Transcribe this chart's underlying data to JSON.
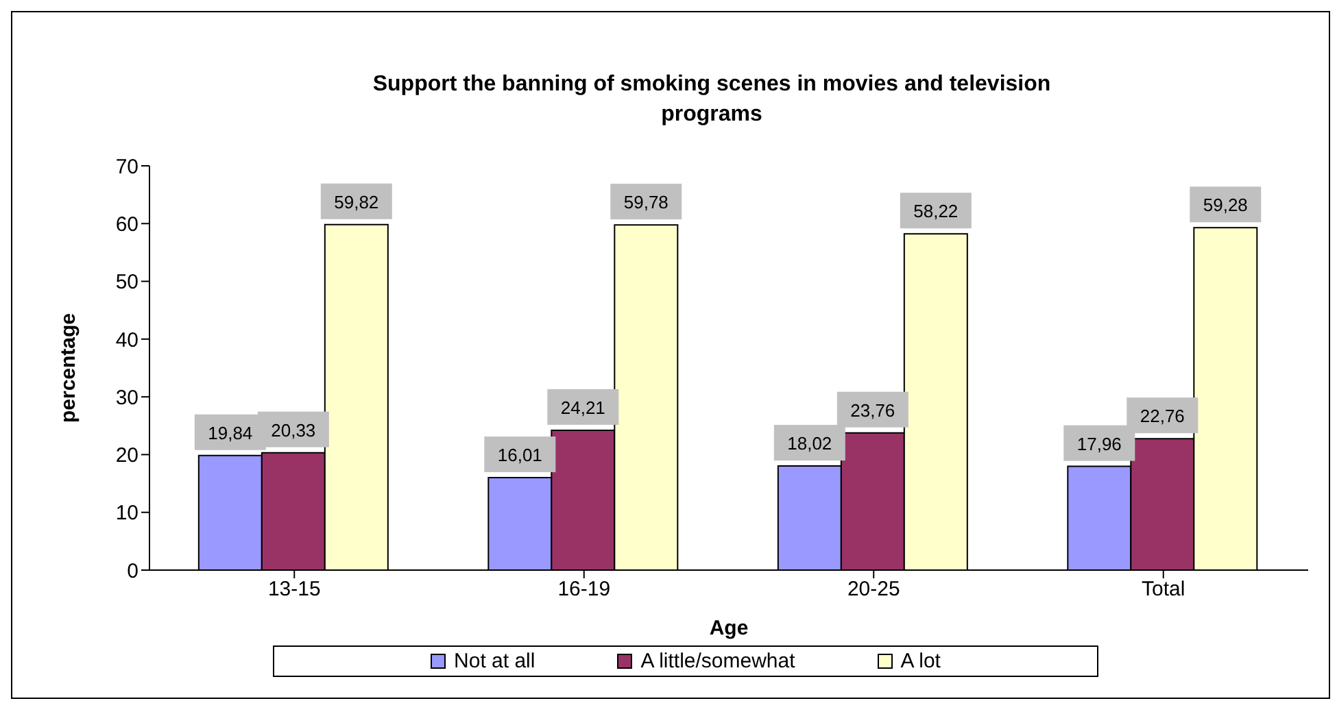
{
  "chart_data": {
    "type": "bar",
    "title": "Support the banning of smoking scenes in movies and television programs",
    "xlabel": "Age",
    "ylabel": "percentage",
    "categories": [
      "13-15",
      "16-19",
      "20-25",
      "Total"
    ],
    "series": [
      {
        "name": "Not at all",
        "color": "#9999ff",
        "values": [
          19.84,
          16.01,
          18.02,
          17.96
        ],
        "value_labels": [
          "19,84",
          "16,01",
          "18,02",
          "17,96"
        ]
      },
      {
        "name": "A little/somewhat",
        "color": "#993366",
        "values": [
          20.33,
          24.21,
          23.76,
          22.76
        ],
        "value_labels": [
          "20,33",
          "24,21",
          "23,76",
          "22,76"
        ]
      },
      {
        "name": "A lot",
        "color": "#ffffcc",
        "values": [
          59.82,
          59.78,
          58.22,
          59.28
        ],
        "value_labels": [
          "59,82",
          "59,78",
          "58,22",
          "59,28"
        ]
      }
    ],
    "ylim": [
      0,
      70
    ],
    "yticks": [
      0,
      10,
      20,
      30,
      40,
      50,
      60,
      70
    ],
    "legend": "bottom"
  }
}
